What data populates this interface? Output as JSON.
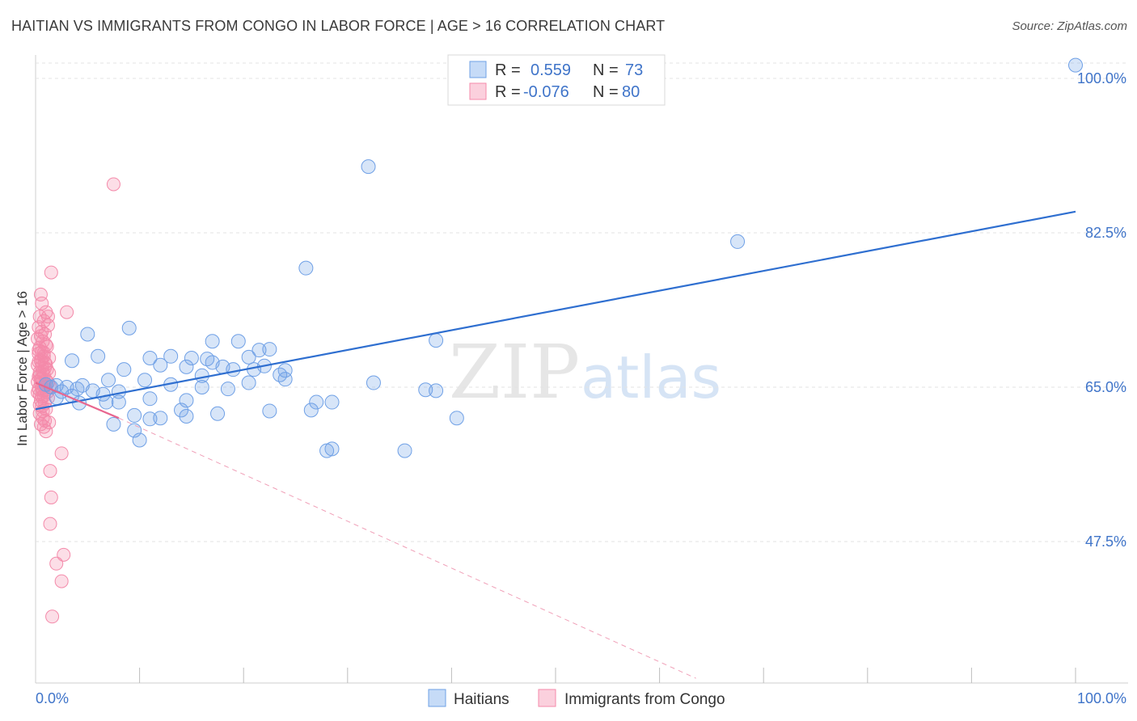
{
  "title": "HAITIAN VS IMMIGRANTS FROM CONGO IN LABOR FORCE | AGE > 16 CORRELATION CHART",
  "source": "Source: ZipAtlas.com",
  "watermark": {
    "zip": "ZIP",
    "atlas": "atlas"
  },
  "legend": {
    "series1": {
      "r_label": "R =",
      "r_value": "0.559",
      "n_label": "N =",
      "n_value": "73"
    },
    "series2": {
      "r_label": "R =",
      "r_value": "-0.076",
      "n_label": "N =",
      "n_value": "80"
    }
  },
  "chart_data": {
    "type": "scatter",
    "title": "HAITIAN VS IMMIGRANTS FROM CONGO IN LABOR FORCE | AGE > 16 CORRELATION CHART",
    "xlabel": "",
    "ylabel": "In Labor Force | Age > 16",
    "xlim": [
      0,
      100
    ],
    "ylim": [
      32,
      102
    ],
    "x_tick_labels": [
      "0.0%",
      "100.0%"
    ],
    "y_ticks": [
      47.5,
      65.0,
      82.5,
      100.0
    ],
    "y_tick_labels": [
      "47.5%",
      "65.0%",
      "82.5%",
      "100.0%"
    ],
    "grid": true,
    "legend_position": "top-center",
    "colors": {
      "haitians": "#6fa0e6",
      "congo": "#f48aaa",
      "haitians_line": "#2f6fd0",
      "congo_line": "#e8668f"
    },
    "series": [
      {
        "name": "Haitians",
        "r": 0.559,
        "n": 73,
        "trend": {
          "x": [
            0,
            100
          ],
          "y": [
            62.5,
            84.9
          ]
        },
        "points": [
          [
            100.0,
            101.5
          ],
          [
            32.0,
            90.0
          ],
          [
            67.5,
            81.5
          ],
          [
            26.0,
            78.5
          ],
          [
            38.5,
            70.3
          ],
          [
            9.0,
            71.7
          ],
          [
            5.0,
            71.0
          ],
          [
            17.0,
            70.2
          ],
          [
            19.5,
            70.2
          ],
          [
            20.5,
            68.4
          ],
          [
            22.5,
            69.3
          ],
          [
            21.5,
            69.2
          ],
          [
            13.0,
            68.5
          ],
          [
            15.0,
            68.3
          ],
          [
            16.5,
            68.2
          ],
          [
            17.0,
            67.8
          ],
          [
            11.0,
            68.3
          ],
          [
            6.0,
            68.5
          ],
          [
            3.5,
            68.0
          ],
          [
            8.5,
            67.0
          ],
          [
            12.0,
            67.5
          ],
          [
            14.5,
            67.3
          ],
          [
            18.0,
            67.3
          ],
          [
            21.0,
            67.0
          ],
          [
            22.0,
            67.4
          ],
          [
            19.0,
            67.0
          ],
          [
            24.0,
            66.9
          ],
          [
            23.5,
            66.4
          ],
          [
            16.0,
            66.3
          ],
          [
            7.0,
            65.8
          ],
          [
            10.5,
            65.8
          ],
          [
            4.5,
            65.2
          ],
          [
            2.0,
            65.2
          ],
          [
            3.0,
            65.0
          ],
          [
            1.5,
            65.0
          ],
          [
            1.0,
            65.3
          ],
          [
            2.5,
            64.5
          ],
          [
            4.0,
            64.8
          ],
          [
            5.5,
            64.6
          ],
          [
            8.0,
            64.5
          ],
          [
            6.5,
            64.2
          ],
          [
            3.5,
            64.0
          ],
          [
            2.0,
            63.8
          ],
          [
            4.2,
            63.2
          ],
          [
            6.8,
            63.3
          ],
          [
            8.0,
            63.3
          ],
          [
            11.0,
            63.7
          ],
          [
            14.5,
            63.5
          ],
          [
            18.5,
            64.8
          ],
          [
            20.5,
            65.5
          ],
          [
            16.0,
            65.0
          ],
          [
            24.0,
            65.9
          ],
          [
            32.5,
            65.5
          ],
          [
            37.5,
            64.7
          ],
          [
            38.5,
            64.6
          ],
          [
            27.0,
            63.3
          ],
          [
            28.5,
            63.3
          ],
          [
            22.5,
            62.3
          ],
          [
            26.5,
            62.4
          ],
          [
            14.0,
            62.4
          ],
          [
            9.5,
            61.8
          ],
          [
            11.0,
            61.4
          ],
          [
            40.5,
            61.5
          ],
          [
            14.5,
            61.7
          ],
          [
            9.5,
            60.1
          ],
          [
            10.0,
            59.0
          ],
          [
            28.0,
            57.8
          ],
          [
            28.5,
            58.0
          ],
          [
            35.5,
            57.8
          ],
          [
            13.0,
            65.3
          ],
          [
            17.5,
            62.0
          ],
          [
            12.0,
            61.5
          ],
          [
            7.5,
            60.8
          ]
        ]
      },
      {
        "name": "Immigrants from Congo",
        "r": -0.076,
        "n": 80,
        "trend_solid": {
          "x": [
            0,
            8
          ],
          "y": [
            65.5,
            61.5
          ]
        },
        "trend_dashed": {
          "x": [
            8,
            63.5
          ],
          "y": [
            61.5,
            32.0
          ]
        },
        "points": [
          [
            7.5,
            88.0
          ],
          [
            1.5,
            78.0
          ],
          [
            0.5,
            75.5
          ],
          [
            0.6,
            74.5
          ],
          [
            1.2,
            73.0
          ],
          [
            1.0,
            73.5
          ],
          [
            0.4,
            73.0
          ],
          [
            0.8,
            72.5
          ],
          [
            3.0,
            73.5
          ],
          [
            1.2,
            72.0
          ],
          [
            0.3,
            71.8
          ],
          [
            0.6,
            71.3
          ],
          [
            0.9,
            71.0
          ],
          [
            0.2,
            70.5
          ],
          [
            0.7,
            70.2
          ],
          [
            1.0,
            69.8
          ],
          [
            0.4,
            69.5
          ],
          [
            0.6,
            69.0
          ],
          [
            0.3,
            68.8
          ],
          [
            0.8,
            68.5
          ],
          [
            1.3,
            68.3
          ],
          [
            0.5,
            68.0
          ],
          [
            0.9,
            67.8
          ],
          [
            0.2,
            67.5
          ],
          [
            0.6,
            67.3
          ],
          [
            1.1,
            67.0
          ],
          [
            0.4,
            66.7
          ],
          [
            0.8,
            66.4
          ],
          [
            0.3,
            66.2
          ],
          [
            0.6,
            66.0
          ],
          [
            1.0,
            65.8
          ],
          [
            0.2,
            65.6
          ],
          [
            0.5,
            65.4
          ],
          [
            0.9,
            65.2
          ],
          [
            1.4,
            65.0
          ],
          [
            0.3,
            64.8
          ],
          [
            0.7,
            64.6
          ],
          [
            1.1,
            64.4
          ],
          [
            0.4,
            64.2
          ],
          [
            0.8,
            64.0
          ],
          [
            1.2,
            63.8
          ],
          [
            0.5,
            63.5
          ],
          [
            0.9,
            63.2
          ],
          [
            0.6,
            62.8
          ],
          [
            1.0,
            62.5
          ],
          [
            0.4,
            62.0
          ],
          [
            0.7,
            61.5
          ],
          [
            1.3,
            61.0
          ],
          [
            0.5,
            60.8
          ],
          [
            0.8,
            60.5
          ],
          [
            1.0,
            60.0
          ],
          [
            2.5,
            57.5
          ],
          [
            1.4,
            55.5
          ],
          [
            1.5,
            52.5
          ],
          [
            1.4,
            49.5
          ],
          [
            2.7,
            46.0
          ],
          [
            2.0,
            45.0
          ],
          [
            2.5,
            43.0
          ],
          [
            1.6,
            39.0
          ],
          [
            0.3,
            69.2
          ],
          [
            0.5,
            70.8
          ],
          [
            0.7,
            66.8
          ],
          [
            0.9,
            67.2
          ],
          [
            1.2,
            65.5
          ],
          [
            0.6,
            64.9
          ],
          [
            0.4,
            66.3
          ],
          [
            0.8,
            68.9
          ],
          [
            1.1,
            69.6
          ],
          [
            0.3,
            67.9
          ],
          [
            0.6,
            63.9
          ],
          [
            1.0,
            64.7
          ],
          [
            0.5,
            65.9
          ],
          [
            0.7,
            62.3
          ],
          [
            0.9,
            61.2
          ],
          [
            1.3,
            66.6
          ],
          [
            0.2,
            64.4
          ],
          [
            0.8,
            65.1
          ],
          [
            0.4,
            63.0
          ],
          [
            1.0,
            67.6
          ],
          [
            0.6,
            68.2
          ]
        ]
      }
    ]
  },
  "bottom_legend": {
    "series1": "Haitians",
    "series2": "Immigrants from Congo"
  }
}
